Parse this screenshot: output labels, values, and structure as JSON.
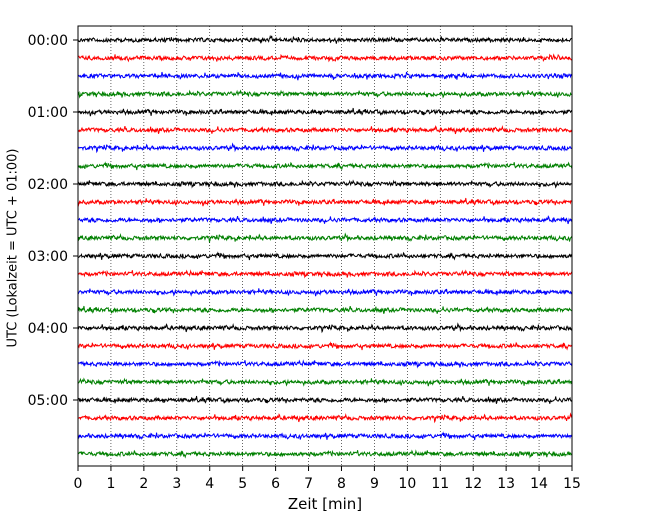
{
  "chart_data": {
    "type": "line",
    "title": "",
    "xlabel": "Zeit  [min]",
    "ylabel": "UTC (Lokalzeit = UTC + 01:00)",
    "xlim": [
      0,
      15
    ],
    "x_ticks": [
      "0",
      "1",
      "2",
      "3",
      "4",
      "5",
      "6",
      "7",
      "8",
      "9",
      "10",
      "11",
      "12",
      "13",
      "14",
      "15"
    ],
    "y_ticks": [
      "00:00",
      "01:00",
      "02:00",
      "03:00",
      "04:00",
      "05:00"
    ],
    "grid": "vertical dotted at each minute",
    "trace_interval_minutes": 15,
    "trace_start_times": [
      "00:00",
      "00:15",
      "00:30",
      "00:45",
      "01:00",
      "01:15",
      "01:30",
      "01:45",
      "02:00",
      "02:15",
      "02:30",
      "02:45",
      "03:00",
      "03:15",
      "03:30",
      "03:45",
      "04:00",
      "04:15",
      "04:30",
      "04:45",
      "05:00",
      "05:15",
      "05:30",
      "05:45"
    ],
    "trace_colors": [
      "#000000",
      "#ff0000",
      "#0000ff",
      "#008000"
    ]
  }
}
